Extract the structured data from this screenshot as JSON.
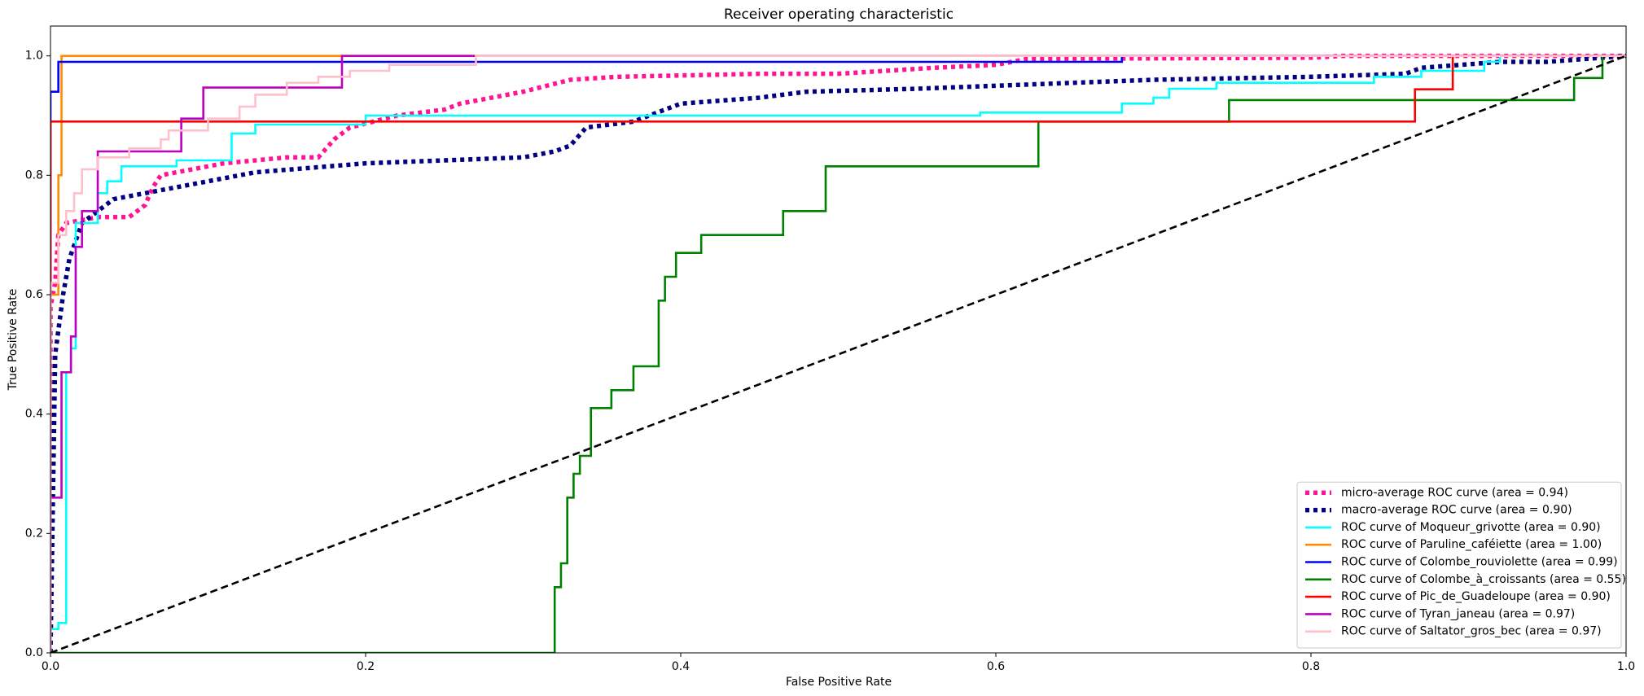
{
  "chart_data": {
    "type": "line",
    "title": "Receiver operating characteristic",
    "xlabel": "False Positive Rate",
    "ylabel": "True Positive Rate",
    "xlim": [
      0,
      1
    ],
    "ylim": [
      0,
      1.05
    ],
    "xticks": [
      {
        "value": 0,
        "label": "0.0"
      },
      0.2,
      0.4,
      0.6,
      0.8,
      {
        "value": 1,
        "label": "1.0"
      }
    ],
    "yticks": [
      {
        "value": 0,
        "label": "0.0"
      },
      0.2,
      0.4,
      0.6,
      0.8,
      {
        "value": 1,
        "label": "1.0"
      }
    ],
    "legend": "lower right",
    "series": [
      {
        "name": "micro-average ROC curve (area = 0.94)",
        "color": "deeppink",
        "style": "dotted",
        "x": [
          0,
          0,
          0.003,
          0.005,
          0.01,
          0.03,
          0.05,
          0.06,
          0.065,
          0.07,
          0.09,
          0.11,
          0.15,
          0.17,
          0.18,
          0.19,
          0.22,
          0.25,
          0.26,
          0.3,
          0.33,
          0.36,
          0.45,
          0.5,
          0.53,
          0.56,
          0.6,
          0.62,
          0.8,
          0.82,
          1
        ],
        "values": [
          0,
          0.58,
          0.62,
          0.7,
          0.72,
          0.73,
          0.73,
          0.75,
          0.78,
          0.8,
          0.81,
          0.82,
          0.83,
          0.83,
          0.86,
          0.88,
          0.9,
          0.91,
          0.92,
          0.94,
          0.96,
          0.965,
          0.97,
          0.97,
          0.975,
          0.98,
          0.985,
          0.995,
          0.997,
          1,
          1
        ]
      },
      {
        "name": "macro-average ROC curve (area = 0.90)",
        "color": "navy",
        "style": "dotted",
        "x": [
          0,
          0.003,
          0.008,
          0.012,
          0.02,
          0.03,
          0.04,
          0.06,
          0.08,
          0.1,
          0.13,
          0.2,
          0.3,
          0.32,
          0.33,
          0.34,
          0.37,
          0.4,
          0.45,
          0.48,
          0.55,
          0.6,
          0.65,
          0.7,
          0.8,
          0.86,
          0.87,
          0.92,
          0.95,
          1
        ],
        "values": [
          0,
          0.5,
          0.6,
          0.66,
          0.72,
          0.74,
          0.76,
          0.77,
          0.78,
          0.79,
          0.805,
          0.82,
          0.83,
          0.84,
          0.85,
          0.88,
          0.89,
          0.92,
          0.93,
          0.94,
          0.945,
          0.95,
          0.955,
          0.96,
          0.965,
          0.97,
          0.98,
          0.99,
          0.99,
          1
        ]
      },
      {
        "name": "ROC curve of Moqueur_grivotte (area = 0.90)",
        "color": "aqua",
        "style": "solid",
        "x": [
          0,
          0,
          0.005,
          0.005,
          0.01,
          0.01,
          0.013,
          0.013,
          0.016,
          0.016,
          0.03,
          0.03,
          0.036,
          0.036,
          0.045,
          0.045,
          0.08,
          0.08,
          0.115,
          0.115,
          0.13,
          0.13,
          0.2,
          0.2,
          0.59,
          0.59,
          0.68,
          0.68,
          0.7,
          0.7,
          0.71,
          0.71,
          0.74,
          0.74,
          0.84,
          0.84,
          0.87,
          0.87,
          0.91,
          0.91,
          0.92,
          0.92,
          1
        ],
        "values": [
          0,
          0.04,
          0.04,
          0.05,
          0.05,
          0.47,
          0.47,
          0.51,
          0.51,
          0.72,
          0.72,
          0.77,
          0.77,
          0.79,
          0.79,
          0.815,
          0.815,
          0.825,
          0.825,
          0.87,
          0.87,
          0.885,
          0.885,
          0.9,
          0.9,
          0.905,
          0.905,
          0.92,
          0.92,
          0.93,
          0.93,
          0.945,
          0.945,
          0.955,
          0.955,
          0.965,
          0.965,
          0.975,
          0.975,
          0.99,
          0.99,
          1,
          1
        ]
      },
      {
        "name": "ROC curve of Paruline_caféiette (area = 1.00)",
        "color": "darkorange",
        "style": "solid",
        "x": [
          0,
          0,
          0.005,
          0.005,
          0.007,
          0.007,
          1
        ],
        "values": [
          0,
          0.6,
          0.6,
          0.8,
          0.8,
          1,
          1
        ]
      },
      {
        "name": "ROC curve of Colombe_rouviolette (area = 0.99)",
        "color": "blue",
        "style": "solid",
        "x": [
          0,
          0,
          0.005,
          0.005,
          0.68,
          0.68,
          1
        ],
        "values": [
          0,
          0.94,
          0.94,
          0.99,
          0.99,
          1,
          1
        ]
      },
      {
        "name": "ROC curve of Colombe_à_croissants (area = 0.55)",
        "color": "green",
        "style": "solid",
        "x": [
          0,
          0.32,
          0.32,
          0.324,
          0.324,
          0.328,
          0.328,
          0.332,
          0.332,
          0.336,
          0.336,
          0.343,
          0.343,
          0.356,
          0.356,
          0.37,
          0.37,
          0.386,
          0.386,
          0.39,
          0.39,
          0.397,
          0.397,
          0.413,
          0.413,
          0.465,
          0.465,
          0.492,
          0.492,
          0.627,
          0.627,
          0.748,
          0.748,
          0.967,
          0.967,
          0.985,
          0.985,
          1
        ],
        "values": [
          0,
          0,
          0.11,
          0.11,
          0.15,
          0.15,
          0.26,
          0.26,
          0.3,
          0.3,
          0.33,
          0.33,
          0.41,
          0.41,
          0.44,
          0.44,
          0.48,
          0.48,
          0.59,
          0.59,
          0.63,
          0.63,
          0.67,
          0.67,
          0.7,
          0.7,
          0.74,
          0.74,
          0.815,
          0.815,
          0.89,
          0.89,
          0.926,
          0.926,
          0.963,
          0.963,
          1,
          1
        ]
      },
      {
        "name": "ROC curve of Pic_de_Guadeloupe (area = 0.90)",
        "color": "red",
        "style": "solid",
        "x": [
          0,
          0,
          0.866,
          0.866,
          0.89,
          0.89,
          1
        ],
        "values": [
          0,
          0.89,
          0.89,
          0.944,
          0.944,
          1,
          1
        ]
      },
      {
        "name": "ROC curve of Tyran_janeau (area = 0.97)",
        "color": "#bf00bf",
        "style": "solid",
        "x": [
          0,
          0,
          0.007,
          0.007,
          0.013,
          0.013,
          0.016,
          0.016,
          0.02,
          0.02,
          0.03,
          0.03,
          0.083,
          0.083,
          0.097,
          0.097,
          0.185,
          0.185,
          1
        ],
        "values": [
          0,
          0.26,
          0.26,
          0.47,
          0.47,
          0.53,
          0.53,
          0.68,
          0.68,
          0.74,
          0.74,
          0.84,
          0.84,
          0.895,
          0.895,
          0.947,
          0.947,
          1,
          1
        ]
      },
      {
        "name": "ROC curve of Saltator_gros_bec (area = 0.97)",
        "color": "pink",
        "style": "solid",
        "x": [
          0,
          0,
          0.005,
          0.005,
          0.01,
          0.01,
          0.015,
          0.015,
          0.02,
          0.02,
          0.03,
          0.03,
          0.05,
          0.05,
          0.07,
          0.07,
          0.075,
          0.075,
          0.1,
          0.1,
          0.12,
          0.12,
          0.13,
          0.13,
          0.15,
          0.15,
          0.17,
          0.17,
          0.19,
          0.19,
          0.215,
          0.215,
          0.27,
          0.27,
          1
        ],
        "values": [
          0,
          0.62,
          0.62,
          0.7,
          0.7,
          0.74,
          0.74,
          0.77,
          0.77,
          0.81,
          0.81,
          0.83,
          0.83,
          0.845,
          0.845,
          0.86,
          0.86,
          0.875,
          0.875,
          0.895,
          0.895,
          0.915,
          0.915,
          0.935,
          0.935,
          0.955,
          0.955,
          0.965,
          0.965,
          0.975,
          0.975,
          0.985,
          0.985,
          1,
          1
        ]
      }
    ],
    "diagonal": {
      "color": "black",
      "style": "dashed",
      "x": [
        0,
        1
      ],
      "values": [
        0,
        1
      ]
    }
  }
}
